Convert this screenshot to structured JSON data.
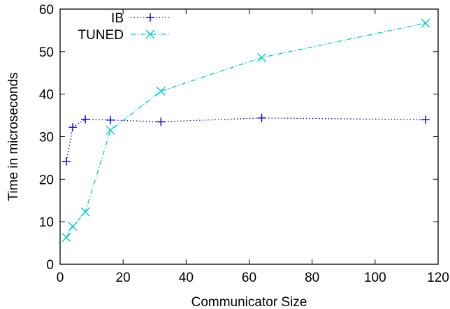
{
  "chart_data": {
    "type": "line",
    "title": "",
    "xlabel": "Communicator Size",
    "ylabel": "Time in microseconds",
    "xlim": [
      0,
      120
    ],
    "ylim": [
      0,
      60
    ],
    "xticks": [
      0,
      20,
      40,
      60,
      80,
      100,
      120
    ],
    "yticks": [
      0,
      10,
      20,
      30,
      40,
      50,
      60
    ],
    "grid": false,
    "legend_position": "top-left",
    "series": [
      {
        "name": "IB",
        "color": "#0000cc",
        "marker": "plus",
        "line_style": "dotted",
        "x": [
          2,
          4,
          8,
          16,
          32,
          64,
          116
        ],
        "y": [
          24.2,
          32.2,
          34.1,
          33.9,
          33.5,
          34.4,
          34.0
        ]
      },
      {
        "name": "TUNED",
        "color": "#00cccc",
        "marker": "cross",
        "line_style": "dash-dot",
        "x": [
          2,
          4,
          8,
          16,
          32,
          64,
          116
        ],
        "y": [
          6.3,
          8.9,
          12.3,
          31.5,
          40.7,
          48.6,
          56.7
        ]
      }
    ]
  }
}
